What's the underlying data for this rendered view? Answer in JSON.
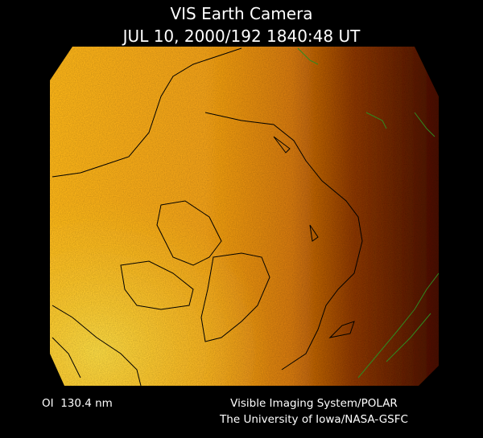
{
  "header": {
    "title": "VIS Earth Camera",
    "timestamp": "JUL 10, 2000/192 1840:48 UT"
  },
  "footer": {
    "filter": "OI  130.4 nm",
    "instrument": "Visible Imaging System/POLAR",
    "institution": "The University of Iowa/NASA-GSFC"
  }
}
